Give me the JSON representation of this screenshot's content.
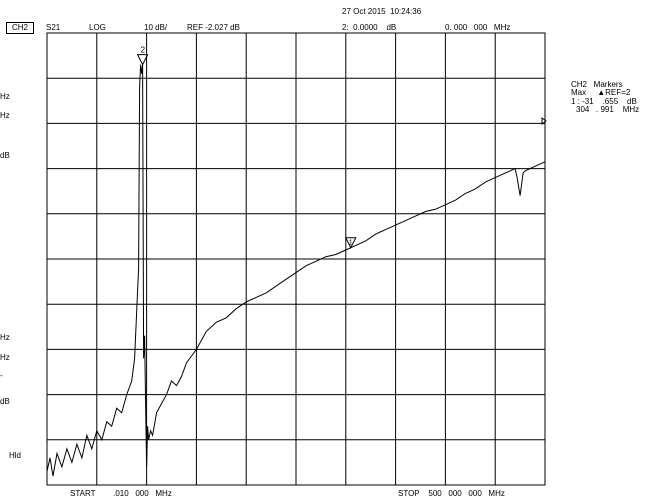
{
  "header": {
    "timestamp": "27 Oct 2015  10:24:36",
    "channel": "CH2",
    "parameter": "S21",
    "format": "LOG",
    "scale": "10 dB/",
    "reference": "REF -2.027 dB",
    "marker_readout": "2:  0.0000    dB",
    "marker_freq": "0. 000   000   MHz"
  },
  "markers_panel": {
    "title": "CH2   Markers",
    "mode": "Max     ▲REF=2",
    "value_line": "1 : -31    .655    dB",
    "freq_line": "304   . 991    MHz"
  },
  "left_panel": {
    "items": [
      "Hz",
      "Hz",
      "dB",
      "Hz",
      "Hz",
      "-",
      "dB",
      "Hld"
    ]
  },
  "footer": {
    "start": "START        .010   000   MHz",
    "stop": "STOP    500   000   000   MHz"
  },
  "markers": [
    {
      "label": "2",
      "freq_mhz": 96,
      "type": "reference"
    },
    {
      "label": "1",
      "freq_mhz": 305,
      "type": "active"
    }
  ],
  "chart_data": {
    "type": "line",
    "title": "",
    "xlabel": "",
    "ylabel": "",
    "x_unit": "MHz",
    "xlim": [
      0.01,
      500
    ],
    "y_unit": "dB",
    "ylim": [
      -98,
      2
    ],
    "grid": true,
    "grid_divisions": [
      10,
      10
    ],
    "series": [
      {
        "x": [
          0.01,
          3,
          6,
          10,
          15,
          20,
          25,
          30,
          35,
          40,
          45,
          50,
          55,
          60,
          65,
          70,
          75,
          80,
          85,
          88,
          90,
          92,
          93,
          94,
          95,
          96,
          97,
          98,
          99,
          100,
          101,
          102,
          104,
          106,
          110,
          115,
          120,
          125,
          130,
          135,
          140,
          150,
          160,
          170,
          180,
          190,
          200,
          210,
          220,
          230,
          240,
          250,
          260,
          270,
          280,
          290,
          300,
          310,
          320,
          330,
          340,
          350,
          360,
          370,
          380,
          390,
          400,
          410,
          420,
          430,
          440,
          450,
          460,
          465,
          470,
          472,
          475,
          478,
          480,
          485,
          490,
          495,
          500
        ],
        "y": [
          -95,
          -92,
          -96,
          -91,
          -94,
          -90,
          -93,
          -89,
          -92,
          -87,
          -90,
          -86,
          -88,
          -84,
          -85,
          -81,
          -82,
          -78,
          -75,
          -70,
          -60,
          -50,
          -10,
          -5,
          -7,
          -5,
          -70,
          -65,
          -80,
          -94,
          -85,
          -88,
          -86,
          -87,
          -82,
          -80,
          -78,
          -75,
          -76,
          -74,
          -71,
          -68,
          -64,
          -62,
          -61,
          -59,
          -57.5,
          -56.5,
          -55.5,
          -54,
          -52.5,
          -51,
          -49.5,
          -48.5,
          -47.5,
          -47,
          -46,
          -45,
          -44,
          -42.5,
          -41.5,
          -40.5,
          -39.5,
          -38.5,
          -37.5,
          -37,
          -36,
          -35,
          -33.5,
          -32.5,
          -31,
          -30,
          -29,
          -28.5,
          -28,
          -30,
          -34,
          -29,
          -28.5,
          -28,
          -27.5,
          -27,
          -26.5
        ]
      }
    ]
  }
}
